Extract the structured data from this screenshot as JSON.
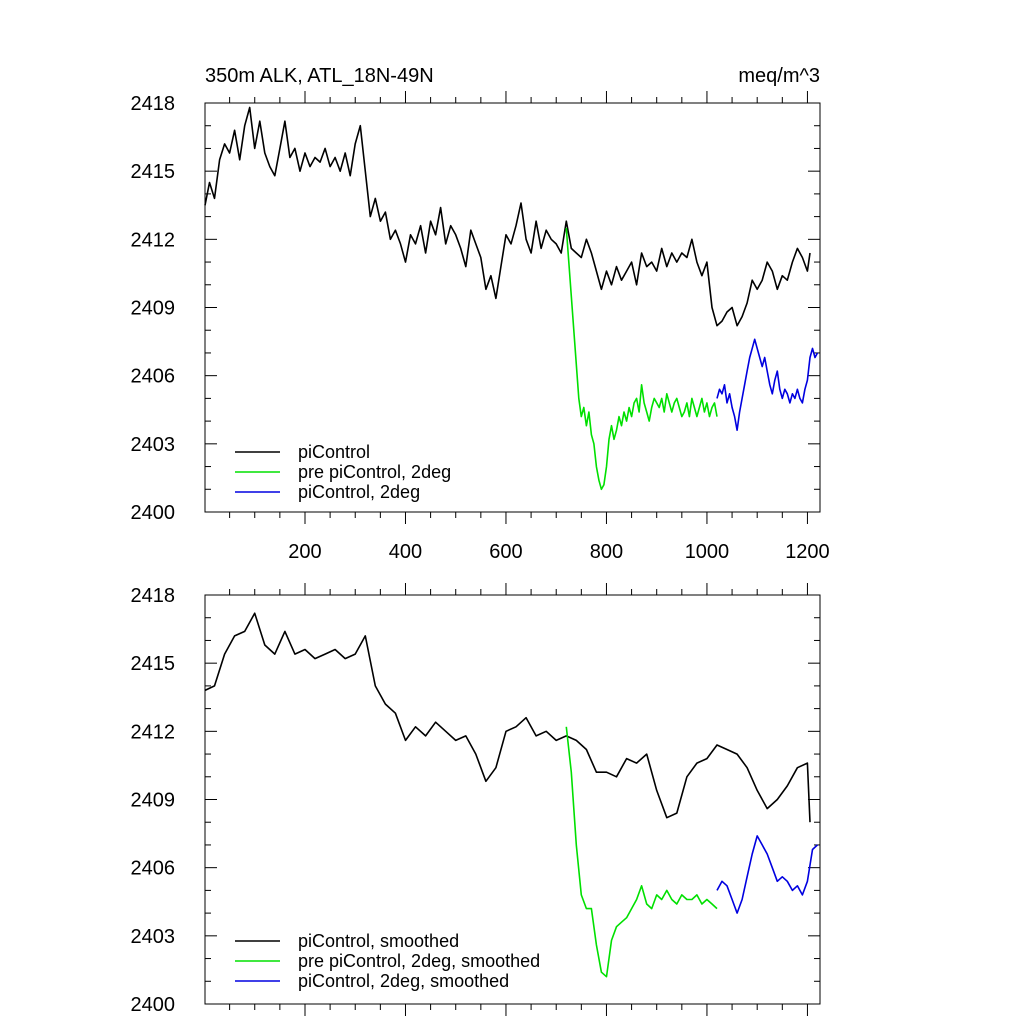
{
  "chart_data": [
    {
      "type": "line",
      "title_left": "350m ALK, ATL_18N-49N",
      "title_right": "meq/m^3",
      "xlim": [
        1,
        1225
      ],
      "ylim": [
        2400,
        2418
      ],
      "x_ticks": [
        200,
        400,
        600,
        800,
        1000,
        1200
      ],
      "x_tick_labels": [
        "200",
        "400",
        "600",
        "800",
        "1000",
        "1200"
      ],
      "y_ticks": [
        2400,
        2403,
        2406,
        2409,
        2412,
        2415,
        2418
      ],
      "y_tick_labels": [
        "2400",
        "2403",
        "2406",
        "2409",
        "2412",
        "2415",
        "2418"
      ],
      "show_x_tick_labels": true,
      "legend_position": "bottom-left",
      "series": [
        {
          "name": "piControl",
          "color": "#000000",
          "x": [
            1,
            10,
            20,
            30,
            40,
            50,
            60,
            70,
            80,
            90,
            100,
            110,
            120,
            130,
            140,
            150,
            160,
            170,
            180,
            190,
            200,
            210,
            220,
            230,
            240,
            250,
            260,
            270,
            280,
            290,
            300,
            310,
            320,
            330,
            340,
            350,
            360,
            370,
            380,
            390,
            400,
            410,
            420,
            430,
            440,
            450,
            460,
            470,
            480,
            490,
            500,
            510,
            520,
            530,
            540,
            550,
            560,
            570,
            580,
            590,
            600,
            610,
            620,
            630,
            640,
            650,
            660,
            670,
            680,
            690,
            700,
            710,
            720,
            730,
            740,
            750,
            760,
            770,
            780,
            790,
            800,
            810,
            820,
            830,
            840,
            850,
            860,
            870,
            880,
            890,
            900,
            910,
            920,
            930,
            940,
            950,
            960,
            970,
            980,
            990,
            1000,
            1010,
            1020,
            1030,
            1040,
            1050,
            1060,
            1070,
            1080,
            1090,
            1100,
            1110,
            1120,
            1130,
            1140,
            1150,
            1160,
            1170,
            1180,
            1190,
            1200,
            1205
          ],
          "y": [
            2413.5,
            2414.5,
            2413.8,
            2415.5,
            2416.2,
            2415.8,
            2416.8,
            2415.5,
            2417.0,
            2417.8,
            2416.0,
            2417.2,
            2415.8,
            2415.2,
            2414.8,
            2416.0,
            2417.2,
            2415.6,
            2416.0,
            2415.0,
            2415.8,
            2415.2,
            2415.6,
            2415.4,
            2416.0,
            2415.2,
            2415.6,
            2415.0,
            2415.8,
            2414.8,
            2416.2,
            2417.0,
            2415.0,
            2413.0,
            2413.8,
            2412.8,
            2413.2,
            2412.0,
            2412.4,
            2411.8,
            2411.0,
            2412.2,
            2411.8,
            2412.6,
            2411.4,
            2412.8,
            2412.2,
            2413.4,
            2411.8,
            2412.6,
            2412.2,
            2411.6,
            2410.8,
            2412.4,
            2411.8,
            2411.2,
            2409.8,
            2410.4,
            2409.4,
            2410.8,
            2412.2,
            2411.8,
            2412.6,
            2413.6,
            2412.0,
            2411.4,
            2412.8,
            2411.6,
            2412.4,
            2412.0,
            2411.8,
            2411.4,
            2412.8,
            2411.6,
            2411.4,
            2411.2,
            2412.0,
            2411.4,
            2410.6,
            2409.8,
            2410.6,
            2410.0,
            2410.8,
            2410.2,
            2410.6,
            2411.0,
            2410.0,
            2411.4,
            2410.8,
            2411.0,
            2410.6,
            2411.6,
            2410.8,
            2411.4,
            2411.0,
            2411.4,
            2411.2,
            2412.0,
            2411.0,
            2410.4,
            2411.0,
            2409.0,
            2408.2,
            2408.4,
            2408.8,
            2409.0,
            2408.2,
            2408.6,
            2409.2,
            2410.2,
            2409.8,
            2410.2,
            2411.0,
            2410.6,
            2409.8,
            2410.4,
            2410.2,
            2411.0,
            2411.6,
            2411.2,
            2410.6,
            2411.4
          ]
        },
        {
          "name": "pre piControl, 2deg",
          "color": "#00e000",
          "x": [
            720,
            725,
            730,
            735,
            740,
            745,
            750,
            755,
            760,
            765,
            770,
            775,
            780,
            785,
            790,
            795,
            800,
            805,
            810,
            815,
            820,
            825,
            830,
            835,
            840,
            845,
            850,
            855,
            860,
            865,
            870,
            875,
            880,
            885,
            890,
            895,
            900,
            905,
            910,
            915,
            920,
            925,
            930,
            935,
            940,
            945,
            950,
            955,
            960,
            965,
            970,
            975,
            980,
            985,
            990,
            995,
            1000,
            1005,
            1010,
            1015,
            1020
          ],
          "y": [
            2412.5,
            2411.0,
            2409.5,
            2408.0,
            2406.5,
            2405.0,
            2404.2,
            2404.6,
            2403.8,
            2404.4,
            2403.4,
            2403.0,
            2402.0,
            2401.4,
            2401.0,
            2401.2,
            2402.0,
            2403.2,
            2403.8,
            2403.2,
            2403.6,
            2404.2,
            2403.8,
            2404.4,
            2404.0,
            2404.6,
            2404.2,
            2404.8,
            2405.0,
            2404.4,
            2405.6,
            2404.8,
            2404.4,
            2404.0,
            2404.6,
            2405.0,
            2404.8,
            2404.6,
            2405.0,
            2404.4,
            2405.2,
            2404.8,
            2404.4,
            2404.8,
            2405.0,
            2404.6,
            2404.2,
            2404.4,
            2404.8,
            2404.2,
            2405.0,
            2404.6,
            2404.2,
            2404.6,
            2405.0,
            2404.4,
            2404.8,
            2404.2,
            2404.6,
            2404.8,
            2404.2
          ]
        },
        {
          "name": "piControl, 2deg",
          "color": "#0000e0",
          "x": [
            1020,
            1025,
            1030,
            1035,
            1040,
            1045,
            1050,
            1055,
            1060,
            1065,
            1070,
            1075,
            1080,
            1085,
            1090,
            1095,
            1100,
            1105,
            1110,
            1115,
            1120,
            1125,
            1130,
            1135,
            1140,
            1145,
            1150,
            1155,
            1160,
            1165,
            1170,
            1175,
            1180,
            1185,
            1190,
            1195,
            1200,
            1205,
            1210,
            1215,
            1220
          ],
          "y": [
            2405.0,
            2405.4,
            2405.2,
            2405.6,
            2404.8,
            2405.2,
            2404.6,
            2404.2,
            2403.6,
            2404.4,
            2405.0,
            2405.6,
            2406.2,
            2406.8,
            2407.2,
            2407.6,
            2407.2,
            2406.8,
            2406.4,
            2406.8,
            2406.2,
            2405.6,
            2405.2,
            2405.8,
            2406.2,
            2405.4,
            2405.0,
            2405.4,
            2405.2,
            2404.8,
            2405.2,
            2405.0,
            2405.4,
            2405.0,
            2404.8,
            2405.4,
            2405.8,
            2406.8,
            2407.2,
            2406.8,
            2407.0
          ]
        }
      ]
    },
    {
      "type": "line",
      "xlim": [
        1,
        1225
      ],
      "ylim": [
        2400,
        2418
      ],
      "x_ticks": [
        200,
        400,
        600,
        800,
        1000,
        1200
      ],
      "y_ticks": [
        2400,
        2403,
        2406,
        2409,
        2412,
        2415,
        2418
      ],
      "y_tick_labels": [
        "2400",
        "2403",
        "2406",
        "2409",
        "2412",
        "2415",
        "2418"
      ],
      "show_x_tick_labels": false,
      "legend_position": "bottom-left",
      "series": [
        {
          "name": "piControl, smoothed",
          "color": "#000000",
          "x": [
            1,
            20,
            40,
            60,
            80,
            100,
            120,
            140,
            160,
            180,
            200,
            220,
            240,
            260,
            280,
            300,
            320,
            340,
            360,
            380,
            400,
            420,
            440,
            460,
            480,
            500,
            520,
            540,
            560,
            580,
            600,
            620,
            640,
            660,
            680,
            700,
            720,
            740,
            760,
            780,
            800,
            820,
            840,
            860,
            880,
            900,
            920,
            940,
            960,
            980,
            1000,
            1020,
            1040,
            1060,
            1080,
            1100,
            1120,
            1140,
            1160,
            1180,
            1200,
            1205
          ],
          "y": [
            2413.8,
            2414.0,
            2415.4,
            2416.2,
            2416.4,
            2417.2,
            2415.8,
            2415.4,
            2416.4,
            2415.4,
            2415.6,
            2415.2,
            2415.4,
            2415.6,
            2415.2,
            2415.4,
            2416.2,
            2414.0,
            2413.2,
            2412.8,
            2411.6,
            2412.2,
            2411.8,
            2412.4,
            2412.0,
            2411.6,
            2411.8,
            2411.0,
            2409.8,
            2410.4,
            2412.0,
            2412.2,
            2412.6,
            2411.8,
            2412.0,
            2411.6,
            2411.8,
            2411.6,
            2411.2,
            2410.2,
            2410.2,
            2410.0,
            2410.8,
            2410.6,
            2411.0,
            2409.4,
            2408.2,
            2408.4,
            2410.0,
            2410.6,
            2410.8,
            2411.4,
            2411.2,
            2411.0,
            2410.4,
            2409.4,
            2408.6,
            2409.0,
            2409.6,
            2410.4,
            2410.6,
            2408.0
          ]
        },
        {
          "name": "pre piControl, 2deg, smoothed",
          "color": "#00e000",
          "x": [
            720,
            730,
            740,
            750,
            760,
            770,
            780,
            790,
            800,
            810,
            820,
            830,
            840,
            850,
            860,
            870,
            880,
            890,
            900,
            910,
            920,
            930,
            940,
            950,
            960,
            970,
            980,
            990,
            1000,
            1010,
            1020
          ],
          "y": [
            2412.2,
            2410.2,
            2407.0,
            2404.8,
            2404.2,
            2404.2,
            2402.6,
            2401.4,
            2401.2,
            2402.8,
            2403.4,
            2403.6,
            2403.8,
            2404.2,
            2404.6,
            2405.2,
            2404.4,
            2404.2,
            2404.8,
            2404.6,
            2405.0,
            2404.6,
            2404.4,
            2404.8,
            2404.6,
            2404.6,
            2404.8,
            2404.4,
            2404.6,
            2404.4,
            2404.2
          ]
        },
        {
          "name": "piControl, 2deg, smoothed",
          "color": "#0000e0",
          "x": [
            1020,
            1030,
            1040,
            1050,
            1060,
            1070,
            1080,
            1090,
            1100,
            1110,
            1120,
            1130,
            1140,
            1150,
            1160,
            1170,
            1180,
            1190,
            1200,
            1210,
            1220
          ],
          "y": [
            2405.0,
            2405.4,
            2405.2,
            2404.6,
            2404.0,
            2404.6,
            2405.6,
            2406.6,
            2407.4,
            2407.0,
            2406.6,
            2406.0,
            2405.4,
            2405.6,
            2405.4,
            2405.0,
            2405.2,
            2404.8,
            2405.4,
            2406.8,
            2407.0
          ]
        }
      ]
    }
  ]
}
